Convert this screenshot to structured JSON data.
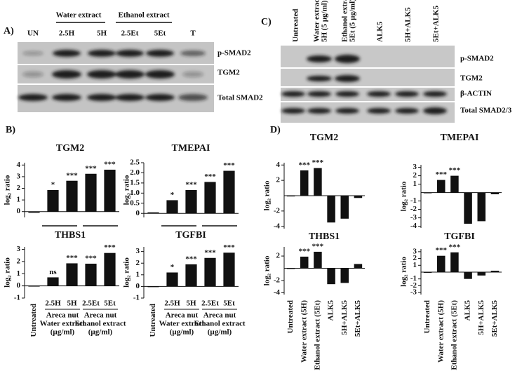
{
  "panels": {
    "A": {
      "label": "A)",
      "groups": [
        "Water extract",
        "Ethanol extract"
      ],
      "lanes": [
        "UN",
        "2.5H",
        "5H",
        "2.5Et",
        "5Et",
        "T"
      ],
      "bands": [
        "p-SMAD2",
        "TGM2",
        "Total SMAD2"
      ]
    },
    "C": {
      "label": "C)",
      "lanes": [
        [
          "Untreated"
        ],
        [
          "Water extract",
          "5H (5 µg/ml)"
        ],
        [
          "Ethanol extract",
          "5Et (5 µg/ml)"
        ],
        [
          "ALK5"
        ],
        [
          "5H+ALK5"
        ],
        [
          "5Et+ALK5"
        ]
      ],
      "bands": [
        "p-SMAD2",
        "TGM2",
        "β-ACTIN",
        "Total SMAD2/3"
      ]
    },
    "B": {
      "label": "B)"
    },
    "D": {
      "label": "D)"
    }
  },
  "chart_data": [
    {
      "type": "bar",
      "title": "TGM2",
      "ylabel": "log₂ ratio",
      "values": [
        -0.1,
        1.85,
        2.65,
        3.25,
        3.6
      ],
      "annotations": [
        null,
        "*",
        "***",
        "***",
        "***"
      ],
      "ylim": [
        -0.5,
        4.2
      ],
      "yticks": [
        0,
        1,
        2,
        3,
        4
      ],
      "color": "#111111"
    },
    {
      "type": "bar",
      "title": "TMEPAI",
      "ylabel": "log₂ ratio",
      "values": [
        0.05,
        0.65,
        1.15,
        1.55,
        2.1
      ],
      "annotations": [
        null,
        "*",
        "***",
        "***",
        "***"
      ],
      "ylim": [
        -0.2,
        2.5
      ],
      "yticks": [
        0,
        0.5,
        {
          "value": 1,
          "label": "1.0"
        },
        1.5,
        {
          "value": 2,
          "label": "2.0"
        },
        2.5
      ],
      "color": "#111111"
    },
    {
      "type": "bar",
      "title": "THBS1",
      "ylabel": "log₂ ratio",
      "categories": [
        "Untreated",
        "2.5H",
        "5H",
        "2.5Et",
        "5Et"
      ],
      "groups": [
        [
          "Areca nut",
          "Water extract",
          "(µg/ml)"
        ],
        [
          "Areca nut",
          "Ethanol extract",
          "(µg/ml)"
        ]
      ],
      "values": [
        -0.05,
        0.7,
        1.85,
        1.82,
        2.7
      ],
      "annotations": [
        null,
        "ns",
        "***",
        "***",
        "***"
      ],
      "ylim": [
        -1,
        3.2
      ],
      "yticks": [
        -1,
        0,
        1,
        2,
        3
      ],
      "color": "#111111"
    },
    {
      "type": "bar",
      "title": "TGFBI",
      "ylabel": "log₂ ratio",
      "categories": [
        "Untreated",
        "2.5H",
        "5H",
        "2.5Et",
        "5Et"
      ],
      "groups": [
        [
          "Areca nut",
          "Water extract",
          "(µg/ml)"
        ],
        [
          "Areca nut",
          "Ethanol extract",
          "(µg/ml)"
        ]
      ],
      "values": [
        -0.05,
        1.2,
        1.9,
        2.45,
        2.9
      ],
      "annotations": [
        null,
        "*",
        "***",
        "***",
        "***"
      ],
      "ylim": [
        -1,
        3.4
      ],
      "yticks": [
        -1,
        0,
        1,
        2,
        3
      ],
      "color": "#111111"
    },
    {
      "type": "bar",
      "title": "TGM2",
      "ylabel": "log₂ ratio",
      "values": [
        -0.1,
        3.3,
        3.6,
        -3.5,
        -3.0,
        -0.3
      ],
      "annotations": [
        null,
        "***",
        "***",
        null,
        null,
        null
      ],
      "ylim": [
        -4.3,
        4.3
      ],
      "yticks": [
        -4,
        -2,
        2,
        4
      ],
      "color": "#111111"
    },
    {
      "type": "bar",
      "title": "TMEPAI",
      "ylabel": "log₂ ratio",
      "values": [
        0,
        1.5,
        2.0,
        -3.7,
        -3.4,
        -0.2
      ],
      "annotations": [
        null,
        "***",
        "***",
        null,
        null,
        null
      ],
      "ylim": [
        -4.2,
        3.3
      ],
      "yticks": [
        -4,
        -3,
        -2,
        -1,
        1,
        2,
        3
      ],
      "color": "#111111"
    },
    {
      "type": "bar",
      "title": "THBS1",
      "ylabel": "log₂ ratio",
      "categories": [
        "Untreated",
        "Water extract (5H)",
        "Ethanol extract (5Et)",
        "ALK5",
        "5H+ALK5",
        "5Et+ALK5"
      ],
      "values": [
        -0.05,
        1.9,
        2.7,
        -2.6,
        -2.4,
        0.7
      ],
      "annotations": [
        null,
        "***",
        "***",
        null,
        null,
        null
      ],
      "ylim": [
        -4.3,
        3.5
      ],
      "yticks": [
        -4,
        -2,
        2
      ],
      "color": "#111111"
    },
    {
      "type": "bar",
      "title": "TGFBI",
      "ylabel": "log₂ ratio",
      "categories": [
        "Untreated",
        "Water extract (5H)",
        "Ethanol extract (5Et)",
        "ALK5",
        "5H+ALK5",
        "5Et+ALK5"
      ],
      "values": [
        -0.1,
        2.4,
        2.9,
        -1.0,
        -0.5,
        0.2
      ],
      "annotations": [
        null,
        "***",
        "***",
        null,
        null,
        null
      ],
      "ylim": [
        -3.3,
        3.4
      ],
      "yticks": [
        -3,
        -2,
        -1,
        1,
        2,
        3
      ],
      "color": "#111111"
    }
  ]
}
